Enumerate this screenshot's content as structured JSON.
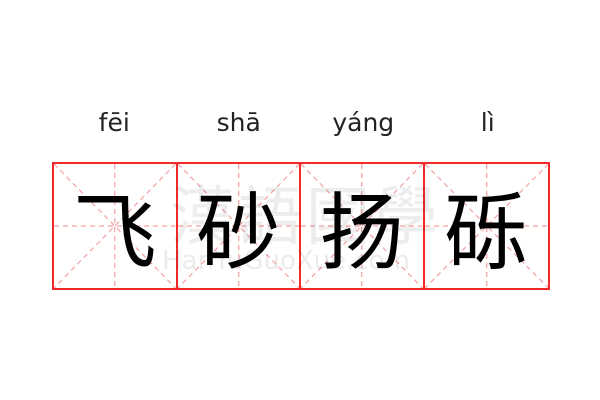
{
  "pinyin": [
    "fēi",
    "shā",
    "yáng",
    "lì"
  ],
  "characters": [
    "飞",
    "砂",
    "扬",
    "砾"
  ],
  "watermark": {
    "chinese": "漢語國學",
    "latin": "HanYuGuoXue.com"
  },
  "colors": {
    "grid_border": "#f02a2a",
    "guide_lines": "#f5a0a0",
    "text": "#000000"
  }
}
